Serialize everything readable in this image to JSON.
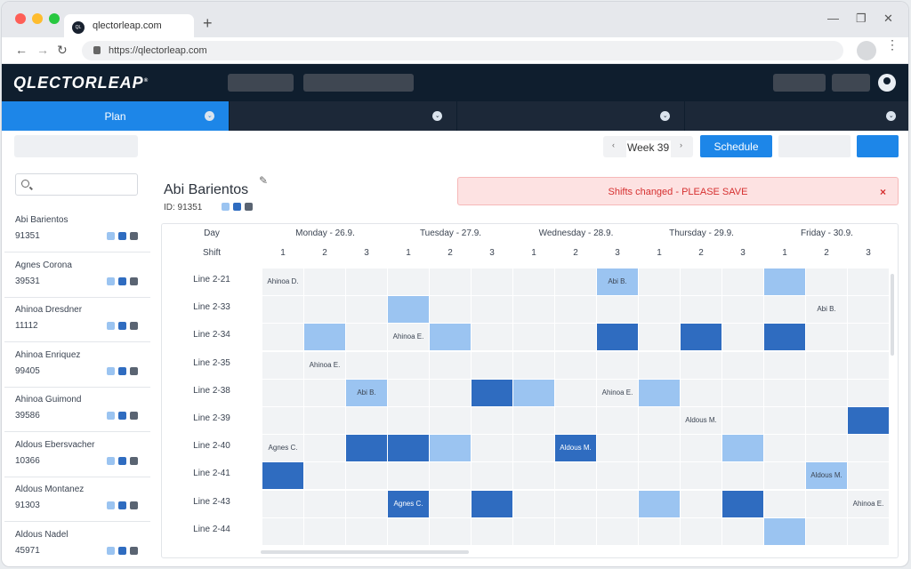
{
  "browser": {
    "tab_title": "qlectorleap.com",
    "tab_favicon": "QL",
    "new_tab": "+",
    "url": "https://qlectorleap.com",
    "min": "—",
    "max": "❐",
    "close": "✕",
    "back": "←",
    "forward": "→",
    "reload": "↻",
    "menu": "⋮"
  },
  "app": {
    "logo": "QLECTORLEAP",
    "logo_mark": "®",
    "modules": [
      {
        "label": "Plan",
        "active": true
      },
      {
        "label": "",
        "active": false
      },
      {
        "label": "",
        "active": false
      },
      {
        "label": "",
        "active": false
      }
    ],
    "chevron": "⌄"
  },
  "toolbar": {
    "prev": "‹",
    "next": "›",
    "week_label": "Week 39",
    "schedule_label": "Schedule"
  },
  "employees": [
    {
      "name": "Abi Barientos",
      "id": "91351"
    },
    {
      "name": "Agnes Corona",
      "id": "39531"
    },
    {
      "name": "Ahinoa Dresdner",
      "id": "11112"
    },
    {
      "name": "Ahinoa Enriquez",
      "id": "99405"
    },
    {
      "name": "Ahinoa Guimond",
      "id": "39586"
    },
    {
      "name": "Aldous Ebersvacher",
      "id": "10366"
    },
    {
      "name": "Aldous Montanez",
      "id": "91303"
    },
    {
      "name": "Aldous Nadel",
      "id": "45971"
    }
  ],
  "shift_colors": [
    "#9bc4f1",
    "#2f6cc0",
    "#5a6472"
  ],
  "selected": {
    "name": "Abi Barientos",
    "id_label": "ID: 91351",
    "edit": "✎"
  },
  "alert": {
    "message": "Shifts changed - PLEASE SAVE",
    "close": "×"
  },
  "grid": {
    "day_label": "Day",
    "shift_label": "Shift",
    "days": [
      "Monday - 26.9.",
      "Tuesday - 27.9.",
      "Wednesday - 28.9.",
      "Thursday - 29.9.",
      "Friday - 30.9."
    ],
    "shifts": [
      "1",
      "2",
      "3"
    ],
    "lines": [
      "Line 2-21",
      "Line 2-33",
      "Line 2-34",
      "Line 2-35",
      "Line 2-38",
      "Line 2-39",
      "Line 2-40",
      "Line 2-41",
      "Line 2-43",
      "Line 2-44"
    ],
    "cells": [
      [
        {
          "s": 0,
          "t": "Ahinoa D."
        },
        {
          "s": 0,
          "t": ""
        },
        {
          "s": 0,
          "t": ""
        },
        {
          "s": 0,
          "t": ""
        },
        {
          "s": 0,
          "t": ""
        },
        {
          "s": 0,
          "t": ""
        },
        {
          "s": 0,
          "t": ""
        },
        {
          "s": 0,
          "t": ""
        },
        {
          "s": 1,
          "t": "Abi B."
        },
        {
          "s": 0,
          "t": ""
        },
        {
          "s": 0,
          "t": ""
        },
        {
          "s": 0,
          "t": ""
        },
        {
          "s": 1,
          "t": ""
        },
        {
          "s": 0,
          "t": ""
        },
        {
          "s": 0,
          "t": ""
        }
      ],
      [
        {
          "s": 0,
          "t": ""
        },
        {
          "s": 0,
          "t": ""
        },
        {
          "s": 0,
          "t": ""
        },
        {
          "s": 1,
          "t": ""
        },
        {
          "s": 0,
          "t": ""
        },
        {
          "s": 0,
          "t": ""
        },
        {
          "s": 0,
          "t": ""
        },
        {
          "s": 0,
          "t": ""
        },
        {
          "s": 0,
          "t": ""
        },
        {
          "s": 0,
          "t": ""
        },
        {
          "s": 0,
          "t": ""
        },
        {
          "s": 0,
          "t": ""
        },
        {
          "s": 0,
          "t": ""
        },
        {
          "s": 0,
          "t": "Abi B."
        },
        {
          "s": 0,
          "t": ""
        }
      ],
      [
        {
          "s": 0,
          "t": ""
        },
        {
          "s": 1,
          "t": ""
        },
        {
          "s": 0,
          "t": ""
        },
        {
          "s": 0,
          "t": "Ahinoa E."
        },
        {
          "s": 1,
          "t": ""
        },
        {
          "s": 0,
          "t": ""
        },
        {
          "s": 0,
          "t": ""
        },
        {
          "s": 0,
          "t": ""
        },
        {
          "s": 2,
          "t": ""
        },
        {
          "s": 0,
          "t": ""
        },
        {
          "s": 2,
          "t": ""
        },
        {
          "s": 0,
          "t": ""
        },
        {
          "s": 2,
          "t": ""
        },
        {
          "s": 0,
          "t": ""
        },
        {
          "s": 0,
          "t": ""
        }
      ],
      [
        {
          "s": 0,
          "t": ""
        },
        {
          "s": 0,
          "t": "Ahinoa E."
        },
        {
          "s": 0,
          "t": ""
        },
        {
          "s": 0,
          "t": ""
        },
        {
          "s": 0,
          "t": ""
        },
        {
          "s": 0,
          "t": ""
        },
        {
          "s": 0,
          "t": ""
        },
        {
          "s": 0,
          "t": ""
        },
        {
          "s": 0,
          "t": ""
        },
        {
          "s": 0,
          "t": ""
        },
        {
          "s": 0,
          "t": ""
        },
        {
          "s": 0,
          "t": ""
        },
        {
          "s": 0,
          "t": ""
        },
        {
          "s": 0,
          "t": ""
        },
        {
          "s": 0,
          "t": ""
        }
      ],
      [
        {
          "s": 0,
          "t": ""
        },
        {
          "s": 0,
          "t": ""
        },
        {
          "s": 1,
          "t": "Abi B."
        },
        {
          "s": 0,
          "t": ""
        },
        {
          "s": 0,
          "t": ""
        },
        {
          "s": 2,
          "t": ""
        },
        {
          "s": 1,
          "t": ""
        },
        {
          "s": 0,
          "t": ""
        },
        {
          "s": 0,
          "t": "Ahinoa E."
        },
        {
          "s": 1,
          "t": ""
        },
        {
          "s": 0,
          "t": ""
        },
        {
          "s": 0,
          "t": ""
        },
        {
          "s": 0,
          "t": ""
        },
        {
          "s": 0,
          "t": ""
        },
        {
          "s": 0,
          "t": ""
        }
      ],
      [
        {
          "s": 0,
          "t": ""
        },
        {
          "s": 0,
          "t": ""
        },
        {
          "s": 0,
          "t": ""
        },
        {
          "s": 0,
          "t": ""
        },
        {
          "s": 0,
          "t": ""
        },
        {
          "s": 0,
          "t": ""
        },
        {
          "s": 0,
          "t": ""
        },
        {
          "s": 0,
          "t": ""
        },
        {
          "s": 0,
          "t": ""
        },
        {
          "s": 0,
          "t": ""
        },
        {
          "s": 0,
          "t": "Aldous M."
        },
        {
          "s": 0,
          "t": ""
        },
        {
          "s": 0,
          "t": ""
        },
        {
          "s": 0,
          "t": ""
        },
        {
          "s": 2,
          "t": ""
        }
      ],
      [
        {
          "s": 0,
          "t": "Agnes C."
        },
        {
          "s": 0,
          "t": ""
        },
        {
          "s": 2,
          "t": ""
        },
        {
          "s": 2,
          "t": ""
        },
        {
          "s": 1,
          "t": ""
        },
        {
          "s": 0,
          "t": ""
        },
        {
          "s": 0,
          "t": ""
        },
        {
          "s": 2,
          "t": "Aldous M."
        },
        {
          "s": 0,
          "t": ""
        },
        {
          "s": 0,
          "t": ""
        },
        {
          "s": 0,
          "t": ""
        },
        {
          "s": 1,
          "t": ""
        },
        {
          "s": 0,
          "t": ""
        },
        {
          "s": 0,
          "t": ""
        },
        {
          "s": 0,
          "t": ""
        }
      ],
      [
        {
          "s": 2,
          "t": ""
        },
        {
          "s": 0,
          "t": ""
        },
        {
          "s": 0,
          "t": ""
        },
        {
          "s": 0,
          "t": ""
        },
        {
          "s": 0,
          "t": ""
        },
        {
          "s": 0,
          "t": ""
        },
        {
          "s": 0,
          "t": ""
        },
        {
          "s": 0,
          "t": ""
        },
        {
          "s": 0,
          "t": ""
        },
        {
          "s": 0,
          "t": ""
        },
        {
          "s": 0,
          "t": ""
        },
        {
          "s": 0,
          "t": ""
        },
        {
          "s": 0,
          "t": ""
        },
        {
          "s": 1,
          "t": "Aldous M."
        },
        {
          "s": 0,
          "t": ""
        }
      ],
      [
        {
          "s": 0,
          "t": ""
        },
        {
          "s": 0,
          "t": ""
        },
        {
          "s": 0,
          "t": ""
        },
        {
          "s": 2,
          "t": "Agnes C."
        },
        {
          "s": 0,
          "t": ""
        },
        {
          "s": 2,
          "t": ""
        },
        {
          "s": 0,
          "t": ""
        },
        {
          "s": 0,
          "t": ""
        },
        {
          "s": 0,
          "t": ""
        },
        {
          "s": 1,
          "t": ""
        },
        {
          "s": 0,
          "t": ""
        },
        {
          "s": 2,
          "t": ""
        },
        {
          "s": 0,
          "t": ""
        },
        {
          "s": 0,
          "t": ""
        },
        {
          "s": 0,
          "t": "Ahinoa E."
        }
      ],
      [
        {
          "s": 0,
          "t": ""
        },
        {
          "s": 0,
          "t": ""
        },
        {
          "s": 0,
          "t": ""
        },
        {
          "s": 0,
          "t": ""
        },
        {
          "s": 0,
          "t": ""
        },
        {
          "s": 0,
          "t": ""
        },
        {
          "s": 0,
          "t": ""
        },
        {
          "s": 0,
          "t": ""
        },
        {
          "s": 0,
          "t": ""
        },
        {
          "s": 0,
          "t": ""
        },
        {
          "s": 0,
          "t": ""
        },
        {
          "s": 0,
          "t": ""
        },
        {
          "s": 1,
          "t": ""
        },
        {
          "s": 0,
          "t": ""
        },
        {
          "s": 0,
          "t": ""
        }
      ]
    ]
  }
}
